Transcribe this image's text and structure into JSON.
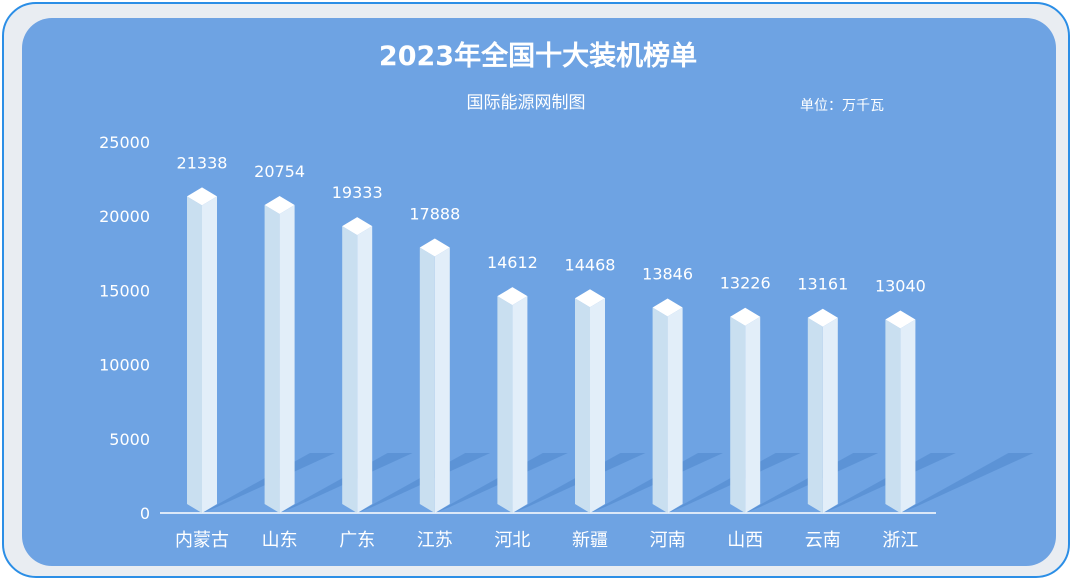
{
  "title": "2023年全国十大装机榜单",
  "subtitle": "国际能源网制图",
  "unit": "单位：万千瓦",
  "colors": {
    "panel": "#6ea3e3",
    "frame": "#e9edf2",
    "border": "#2b8ee6",
    "bar_left": "#c9dff0",
    "bar_right": "#e2eef9",
    "bar_top": "#ffffff",
    "shadow": "#4f86cc"
  },
  "chart_data": {
    "type": "bar",
    "categories": [
      "内蒙古",
      "山东",
      "广东",
      "江苏",
      "河北",
      "新疆",
      "河南",
      "山西",
      "云南",
      "浙江"
    ],
    "values": [
      21338,
      20754,
      19333,
      17888,
      14612,
      14468,
      13846,
      13226,
      13161,
      13040
    ],
    "yticks": [
      0,
      5000,
      10000,
      15000,
      20000,
      25000
    ],
    "ylim": [
      0,
      25000
    ]
  }
}
